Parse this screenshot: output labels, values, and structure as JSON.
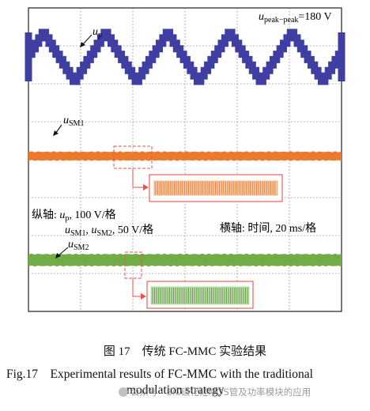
{
  "figure": {
    "labels": {
      "up_base": "u",
      "up_sub": "p",
      "usm1_base": "u",
      "usm1_sub": "SM1",
      "usm2_base": "u",
      "usm2_sub": "SM2",
      "peak_base": "u",
      "peak_sub": "peak−peak",
      "peak_value": "=180 V",
      "yaxis_line1_prefix": "纵轴: ",
      "yaxis_line1_var": "u",
      "yaxis_line1_sub": "p",
      "yaxis_line1_suffix": ", 100 V/格",
      "yaxis_line2_var1": "u",
      "yaxis_line2_sub1": "SM1",
      "yaxis_line2_mid": ", ",
      "yaxis_line2_var2": "u",
      "yaxis_line2_sub2": "SM2",
      "yaxis_line2_suffix": ", 50 V/格",
      "xaxis": "横轴: 时间, 20 ms/格"
    },
    "colors": {
      "up": "#3f3ea3",
      "usm1": "#ec7a2e",
      "usm2": "#70ad47",
      "zoom_frame": "#e8524a",
      "grid": "#555555"
    }
  },
  "caption": {
    "cn": "图 17　传统 FC-MMC 实验结果",
    "en_line1": "Fig.17　Experimental results of FC-MMC with the traditional",
    "en_line2": "modulation strategy"
  },
  "watermark": "公众号 · SiC碳化硅MOS管及功率模块的应用"
}
